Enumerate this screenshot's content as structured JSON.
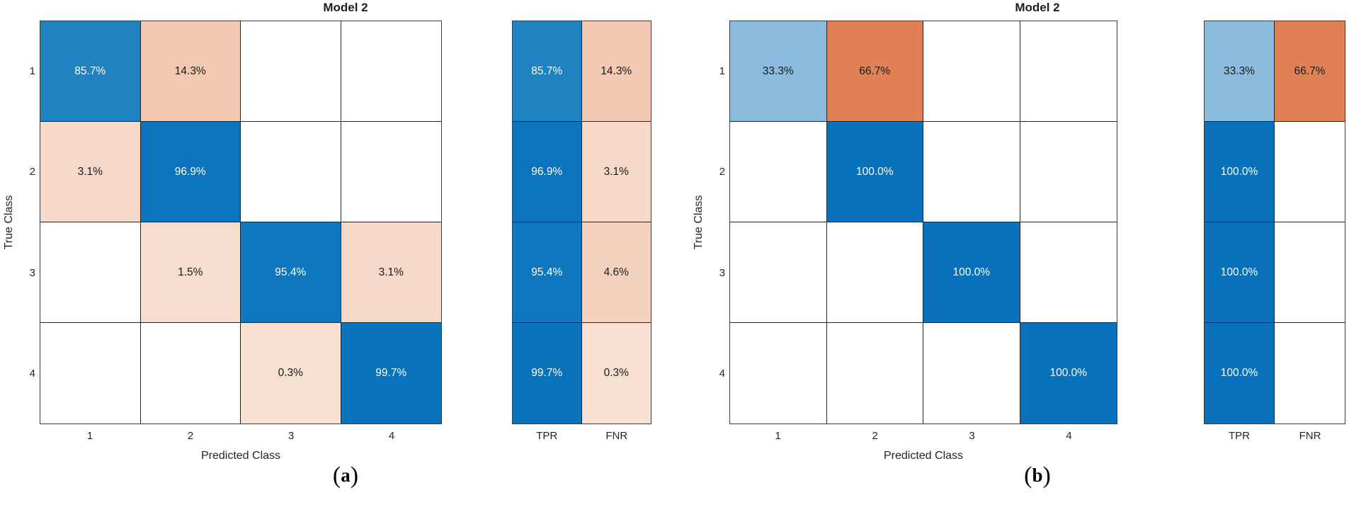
{
  "palette": {
    "diagonal_blue_full": "#0772bb",
    "diagonal_blue_light": "#8bbcde",
    "offdiagonal_orange_full": "#e08155",
    "offdiagonal_orange_light": "#f2c9b2",
    "grid_line": "#242424",
    "axis_box": "#3d3d3d",
    "text_dark": "#1a1a1a",
    "text_light": "#ffffff"
  },
  "chart_data": [
    {
      "type": "heatmap",
      "title": "Model 2",
      "xlabel": "Predicted Class",
      "ylabel": "True Class",
      "x_categories": [
        "1",
        "2",
        "3",
        "4"
      ],
      "y_categories": [
        "1",
        "2",
        "3",
        "4"
      ],
      "values_percent_row_normalized": [
        [
          85.7,
          14.3,
          0,
          0
        ],
        [
          3.1,
          96.9,
          0,
          0
        ],
        [
          0,
          1.5,
          95.4,
          3.1
        ],
        [
          0,
          0,
          0.3,
          99.7
        ]
      ],
      "row_summary": {
        "columns": [
          "TPR",
          "FNR"
        ],
        "TPR": [
          85.7,
          96.9,
          95.4,
          99.7
        ],
        "FNR": [
          14.3,
          3.1,
          4.6,
          0.3
        ]
      },
      "note": "zero cells rendered blank white",
      "caption": "(a)"
    },
    {
      "type": "heatmap",
      "title": "Model 2",
      "xlabel": "Predicted Class",
      "ylabel": "True Class",
      "x_categories": [
        "1",
        "2",
        "3",
        "4"
      ],
      "y_categories": [
        "1",
        "2",
        "3",
        "4"
      ],
      "values_percent_row_normalized": [
        [
          33.3,
          66.7,
          0,
          0
        ],
        [
          0,
          100.0,
          0,
          0
        ],
        [
          0,
          0,
          100.0,
          0
        ],
        [
          0,
          0,
          0,
          100.0
        ]
      ],
      "row_summary": {
        "columns": [
          "TPR",
          "FNR"
        ],
        "TPR": [
          33.3,
          100.0,
          100.0,
          100.0
        ],
        "FNR": [
          66.7,
          0,
          0,
          0
        ]
      },
      "note": "zero cells rendered blank white",
      "caption": "(b)"
    }
  ],
  "charts": [
    {
      "title": "Model 2",
      "x_label": "Predicted Class",
      "y_label": "True Class",
      "x_ticks": [
        "1",
        "2",
        "3",
        "4"
      ],
      "y_ticks": [
        "1",
        "2",
        "3",
        "4"
      ],
      "summary_labels": [
        "TPR",
        "FNR"
      ],
      "caption": {
        "open": "(",
        "letter": "a",
        "close": ")"
      },
      "cells": [
        {
          "t": "85.7%",
          "bg": "#1f82c1",
          "fg": "#ffffff"
        },
        {
          "t": "14.3%",
          "bg": "#f2c9b2",
          "fg": "#1a1a1a"
        },
        {},
        {},
        {
          "t": "3.1%",
          "bg": "#f6d9c9",
          "fg": "#1a1a1a"
        },
        {
          "t": "96.9%",
          "bg": "#0b74bc",
          "fg": "#ffffff"
        },
        {},
        {},
        {},
        {
          "t": "1.5%",
          "bg": "#f7ddce",
          "fg": "#1a1a1a"
        },
        {
          "t": "95.4%",
          "bg": "#0f77be",
          "fg": "#ffffff"
        },
        {
          "t": "3.1%",
          "bg": "#f6d9c9",
          "fg": "#1a1a1a"
        },
        {},
        {},
        {
          "t": "0.3%",
          "bg": "#f8e0d2",
          "fg": "#1a1a1a"
        },
        {
          "t": "99.7%",
          "bg": "#0873bb",
          "fg": "#ffffff"
        }
      ],
      "summary_cells": [
        {
          "t": "85.7%",
          "bg": "#1f82c1",
          "fg": "#ffffff"
        },
        {
          "t": "14.3%",
          "bg": "#f2c9b2",
          "fg": "#1a1a1a"
        },
        {
          "t": "96.9%",
          "bg": "#0b74bc",
          "fg": "#ffffff"
        },
        {
          "t": "3.1%",
          "bg": "#f6d9c9",
          "fg": "#1a1a1a"
        },
        {
          "t": "95.4%",
          "bg": "#0f77be",
          "fg": "#ffffff"
        },
        {
          "t": "4.6%",
          "bg": "#f4d2bf",
          "fg": "#1a1a1a"
        },
        {
          "t": "99.7%",
          "bg": "#0873bb",
          "fg": "#ffffff"
        },
        {
          "t": "0.3%",
          "bg": "#f8e0d2",
          "fg": "#1a1a1a"
        }
      ]
    },
    {
      "title": "Model 2",
      "x_label": "Predicted Class",
      "y_label": "True Class",
      "x_ticks": [
        "1",
        "2",
        "3",
        "4"
      ],
      "y_ticks": [
        "1",
        "2",
        "3",
        "4"
      ],
      "summary_labels": [
        "TPR",
        "FNR"
      ],
      "caption": {
        "open": "(",
        "letter": "b",
        "close": ")"
      },
      "cells": [
        {
          "t": "33.3%",
          "bg": "#8bbcde",
          "fg": "#1a1a1a"
        },
        {
          "t": "66.7%",
          "bg": "#e08155",
          "fg": "#1a1a1a"
        },
        {},
        {},
        {},
        {
          "t": "100.0%",
          "bg": "#0772bb",
          "fg": "#ffffff"
        },
        {},
        {},
        {},
        {},
        {
          "t": "100.0%",
          "bg": "#0772bb",
          "fg": "#ffffff"
        },
        {},
        {},
        {},
        {},
        {
          "t": "100.0%",
          "bg": "#0772bb",
          "fg": "#ffffff"
        }
      ],
      "summary_cells": [
        {
          "t": "33.3%",
          "bg": "#8bbcde",
          "fg": "#1a1a1a"
        },
        {
          "t": "66.7%",
          "bg": "#e08155",
          "fg": "#1a1a1a"
        },
        {
          "t": "100.0%",
          "bg": "#0772bb",
          "fg": "#ffffff"
        },
        {},
        {
          "t": "100.0%",
          "bg": "#0772bb",
          "fg": "#ffffff"
        },
        {},
        {
          "t": "100.0%",
          "bg": "#0772bb",
          "fg": "#ffffff"
        },
        {}
      ]
    }
  ]
}
